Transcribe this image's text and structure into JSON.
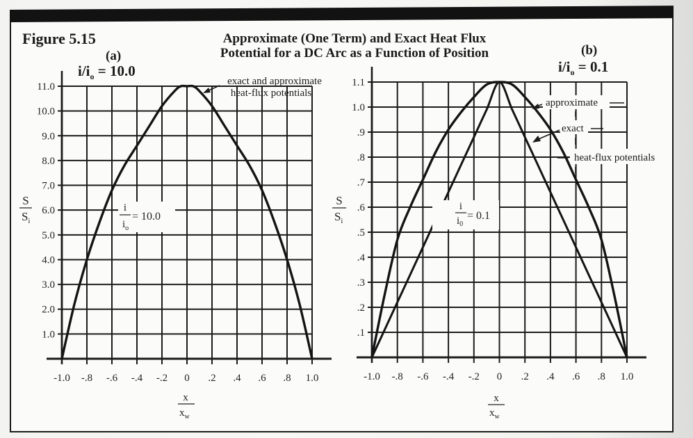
{
  "figure": {
    "number": "Figure 5.15",
    "title_line1": "Approximate (One Term) and Exact Heat Flux",
    "title_line2": "Potential for a DC Arc as a Function of Position"
  },
  "panels": {
    "a": {
      "label": "(a)",
      "ratio_main": "i/i",
      "ratio_sub": "o",
      "ratio_value": " = 10.0",
      "annotation_line1": "exact and approximate",
      "annotation_line2": "heat-flux potentials",
      "inline_label_num": "i",
      "inline_label_den": "i",
      "inline_label_den_sub": "o",
      "inline_label_value": "= 10.0"
    },
    "b": {
      "label": "(b)",
      "ratio_main": "i/i",
      "ratio_sub": "o",
      "ratio_value": " = 0.1",
      "annotation_approx": "approximate",
      "annotation_exact": "exact",
      "annotation_heat": "heat-flux potentials",
      "inline_label_num": "i",
      "inline_label_den": "i",
      "inline_label_den_sub": "0",
      "inline_label_value": "= 0.1"
    }
  },
  "axes": {
    "ylabel_num": "S",
    "ylabel_den": "S",
    "ylabel_den_sub": "i",
    "xlabel_num": "x",
    "xlabel_den": "x",
    "xlabel_den_sub": "w"
  },
  "colors": {
    "ink": "#1b1b1b",
    "paper": "#fbfbfa",
    "bar": "#121212"
  },
  "chart_data": [
    {
      "type": "line",
      "title": "(a) i/i_o = 10.0",
      "xlabel": "x/x_w",
      "ylabel": "S/S_i",
      "xlim": [
        -1.0,
        1.0
      ],
      "ylim": [
        0,
        11.0
      ],
      "x_ticks": [
        "-1.0",
        "-.8",
        "-.6",
        "-.4",
        "-.2",
        "0",
        ".2",
        ".4",
        ".6",
        ".8",
        "1.0"
      ],
      "y_ticks": [
        "1.0",
        "2.0",
        "3.0",
        "4.0",
        "5.0",
        "6.0",
        "7.0",
        "8.0",
        "9.0",
        "10.0",
        "11.0"
      ],
      "grid": true,
      "x": [
        -1.0,
        -0.9,
        -0.8,
        -0.7,
        -0.6,
        -0.5,
        -0.4,
        -0.3,
        -0.2,
        -0.1,
        -0.05,
        0.0,
        0.05,
        0.1,
        0.2,
        0.3,
        0.4,
        0.5,
        0.6,
        0.7,
        0.8,
        0.9,
        1.0
      ],
      "series": [
        {
          "name": "exact and approximate heat-flux potentials",
          "values": [
            0.0,
            2.2,
            4.0,
            5.5,
            6.8,
            7.8,
            8.6,
            9.4,
            10.2,
            10.8,
            11.0,
            11.0,
            11.0,
            10.8,
            10.2,
            9.4,
            8.6,
            7.8,
            6.8,
            5.5,
            4.0,
            2.2,
            0.0
          ]
        }
      ],
      "annotations": [
        "exact and approximate heat-flux potentials",
        "i/i_o = 10.0"
      ]
    },
    {
      "type": "line",
      "title": "(b) i/i_o = 0.1",
      "xlabel": "x/x_w",
      "ylabel": "S/S_i",
      "xlim": [
        -1.0,
        1.0
      ],
      "ylim": [
        0,
        1.1
      ],
      "x_ticks": [
        "-1.0",
        "-.8",
        "-.6",
        "-.4",
        "-.2",
        "0",
        ".2",
        ".4",
        ".6",
        ".8",
        "1.0"
      ],
      "y_ticks": [
        ".1",
        ".2",
        ".3",
        ".4",
        ".5",
        ".6",
        ".7",
        ".8",
        ".9",
        "1.0",
        "1.1"
      ],
      "grid": true,
      "x": [
        -1.0,
        -0.9,
        -0.8,
        -0.7,
        -0.6,
        -0.5,
        -0.4,
        -0.3,
        -0.2,
        -0.1,
        0.0,
        0.1,
        0.2,
        0.3,
        0.4,
        0.5,
        0.6,
        0.7,
        0.8,
        0.9,
        1.0
      ],
      "series": [
        {
          "name": "approximate",
          "values": [
            0.0,
            0.25,
            0.47,
            0.6,
            0.71,
            0.82,
            0.91,
            0.98,
            1.04,
            1.09,
            1.1,
            1.09,
            1.04,
            0.98,
            0.91,
            0.82,
            0.71,
            0.6,
            0.47,
            0.25,
            0.0
          ]
        },
        {
          "name": "exact",
          "values": [
            0.0,
            0.11,
            0.22,
            0.33,
            0.44,
            0.55,
            0.66,
            0.77,
            0.88,
            0.99,
            1.1,
            0.99,
            0.88,
            0.77,
            0.66,
            0.55,
            0.44,
            0.33,
            0.22,
            0.11,
            0.0
          ]
        }
      ],
      "annotations": [
        "approximate",
        "exact",
        "heat-flux potentials",
        "i/i_0 = 0.1"
      ]
    }
  ]
}
